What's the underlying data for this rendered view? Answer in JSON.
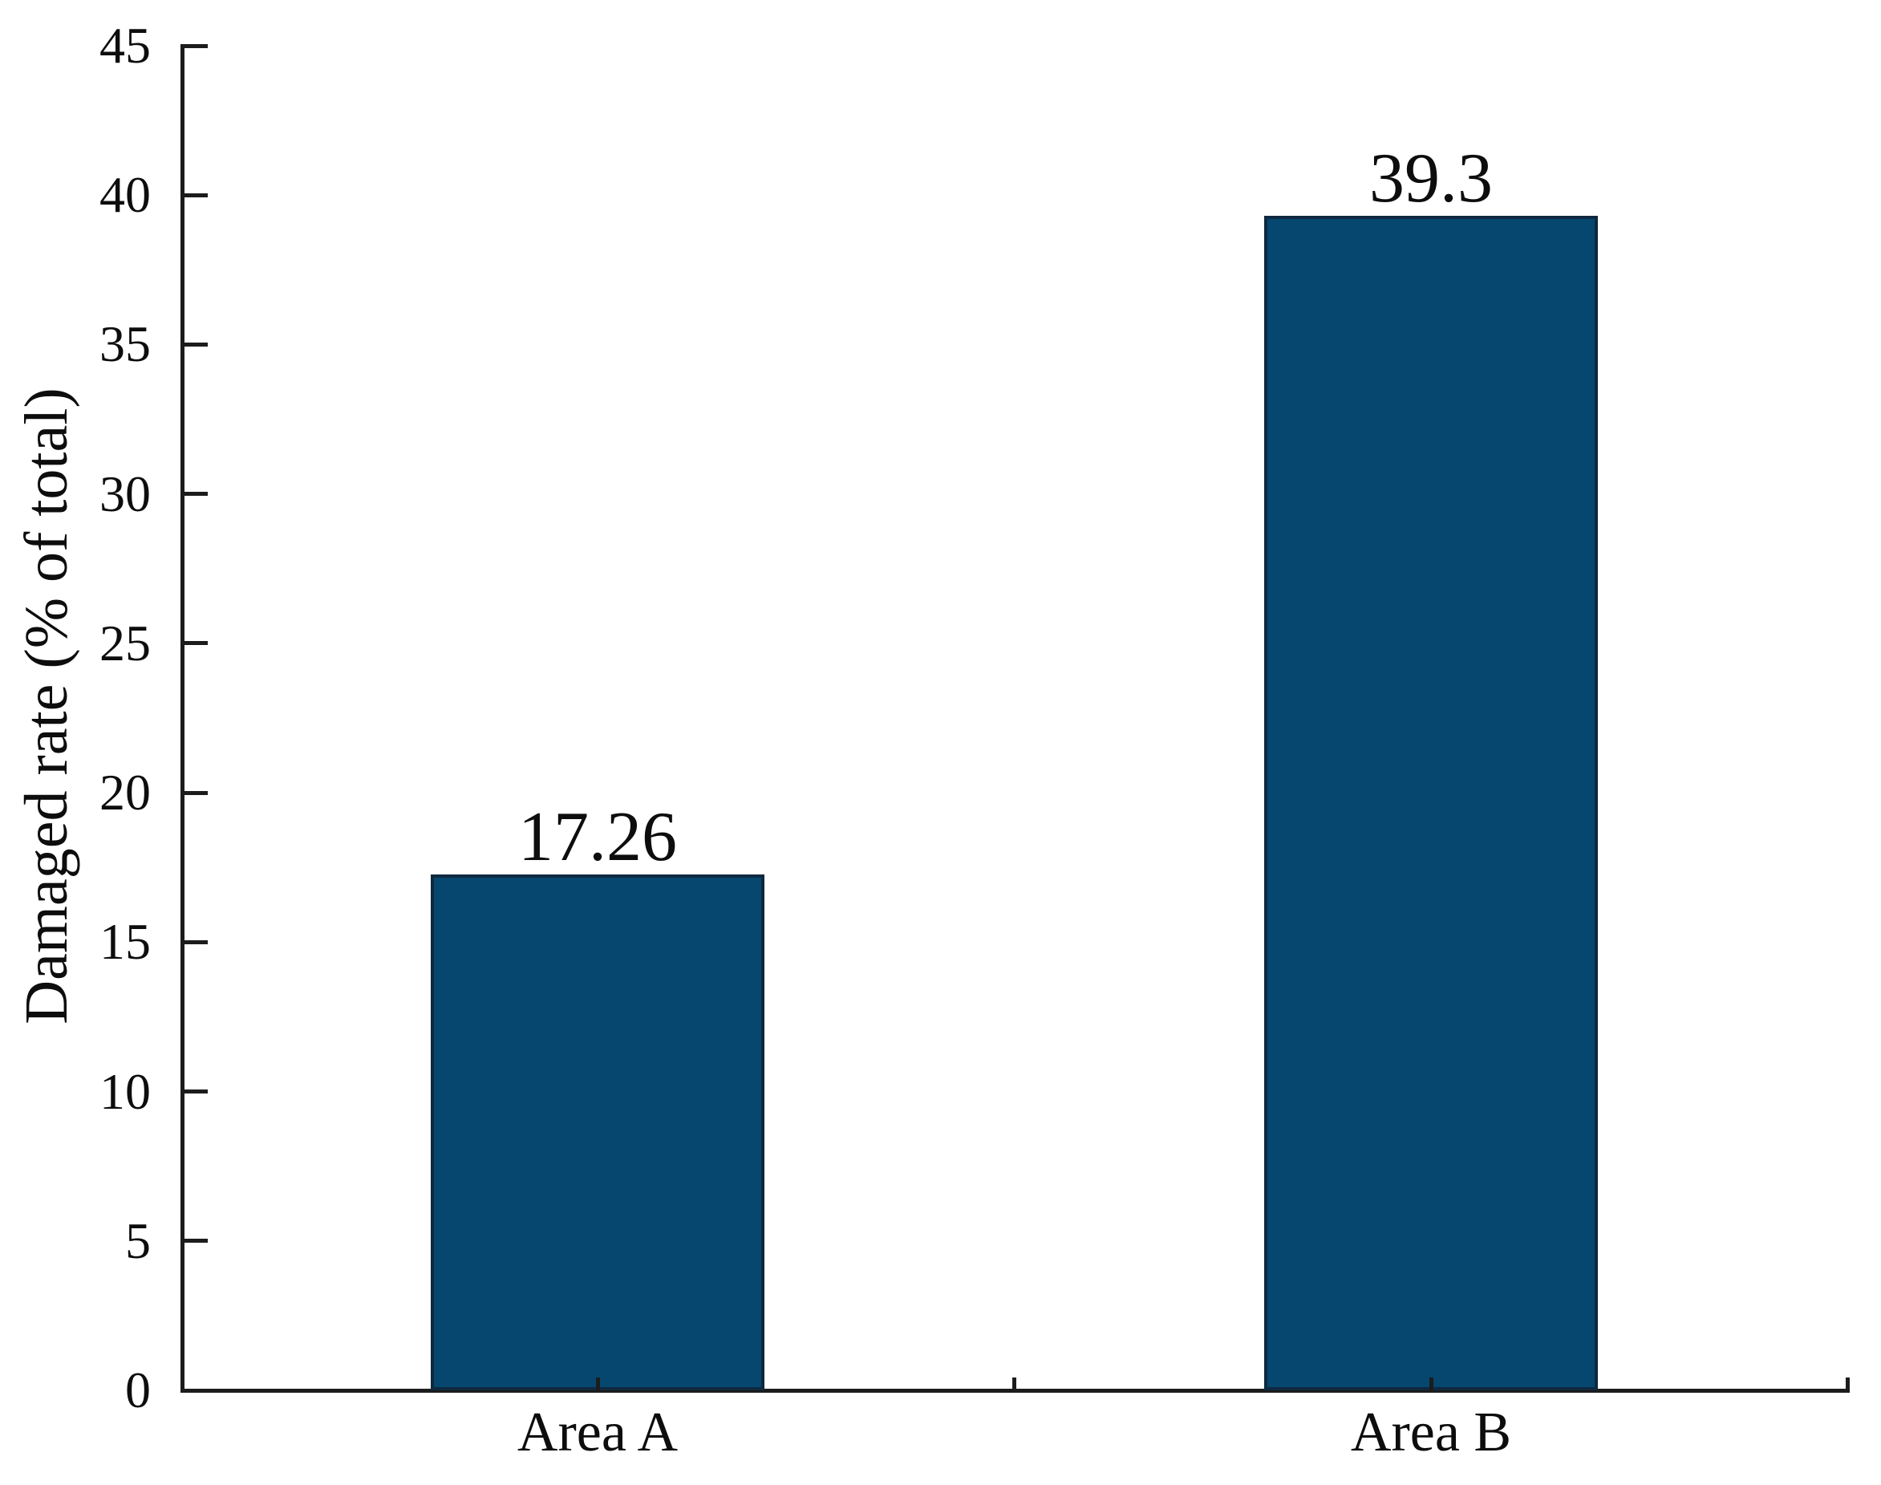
{
  "chart_data": {
    "type": "bar",
    "categories": [
      "Area A",
      "Area B"
    ],
    "values": [
      17.26,
      39.3
    ],
    "value_labels": [
      "17.26",
      "39.3"
    ],
    "title": "",
    "xlabel": "",
    "ylabel": "Damaged rate (% of total)",
    "ylim": [
      0,
      45
    ],
    "yticks": [
      0,
      5,
      10,
      15,
      20,
      25,
      30,
      35,
      40,
      45
    ],
    "ytick_labels": [
      "0",
      "5",
      "10",
      "15",
      "20",
      "25",
      "30",
      "35",
      "40",
      "45"
    ],
    "grid": false,
    "legend": null,
    "bar_color": "#05476f",
    "bar_border_color": "#0e2940",
    "axis_color": "#1c1c1c",
    "text_color": "#0d0d0d"
  }
}
